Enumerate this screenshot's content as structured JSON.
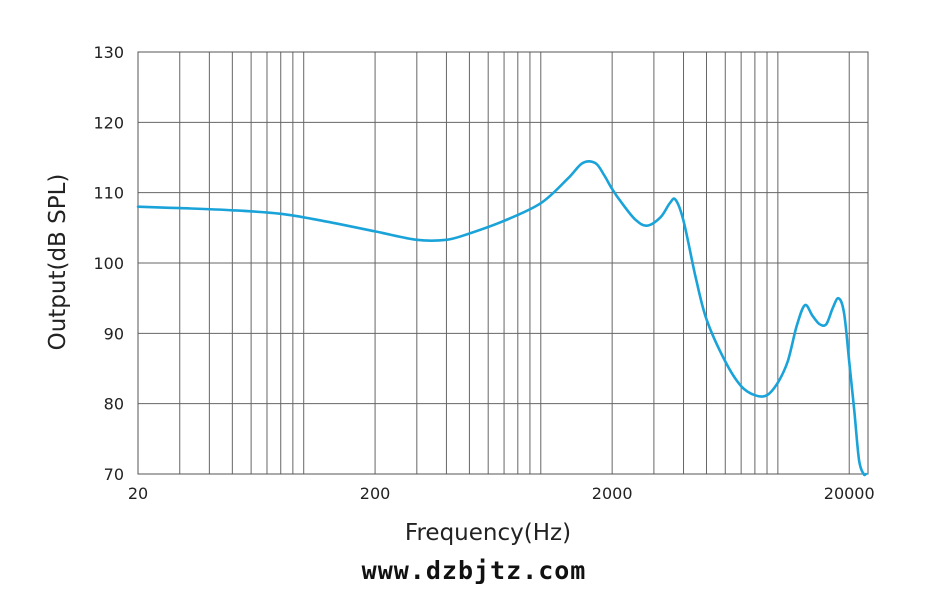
{
  "chart_data": {
    "type": "line",
    "title": "",
    "xlabel": "Frequency(Hz)",
    "ylabel": "Output(dB SPL)",
    "x_scale": "log",
    "xlim": [
      20,
      24000
    ],
    "ylim": [
      70,
      130
    ],
    "x_tick_labels": [
      {
        "value": 20,
        "label": "20"
      },
      {
        "value": 200,
        "label": "200"
      },
      {
        "value": 2000,
        "label": "2000"
      },
      {
        "value": 20000,
        "label": "20000"
      }
    ],
    "y_ticks": [
      70,
      80,
      90,
      100,
      110,
      120,
      130
    ],
    "grid": true,
    "line_color": "#1aa3d9",
    "grid_color": "#666666",
    "series": [
      {
        "x": [
          20,
          30,
          50,
          80,
          120,
          200,
          300,
          400,
          500,
          700,
          1000,
          1300,
          1500,
          1700,
          1850,
          2000,
          2200,
          2500,
          2800,
          3200,
          3500,
          3700,
          4000,
          4500,
          5000,
          6000,
          7000,
          8000,
          9000,
          10000,
          11000,
          12000,
          13000,
          14000,
          15000,
          16000,
          17000,
          18000,
          19000,
          20000,
          21000,
          22000,
          23000,
          23500
        ],
        "y": [
          108,
          107.8,
          107.5,
          107,
          106,
          104.5,
          103.3,
          103.3,
          104.2,
          106,
          108.5,
          112,
          114.2,
          114.2,
          112.5,
          110.5,
          108.5,
          106.2,
          105.3,
          106.5,
          108.5,
          109,
          106,
          98,
          92,
          86,
          82.5,
          81.2,
          81.2,
          83,
          86,
          91,
          94,
          92.5,
          91.3,
          91.3,
          93.5,
          95,
          93,
          86,
          79,
          72,
          70,
          70
        ]
      }
    ]
  },
  "footer": {
    "watermark": "www.dzbjtz.com"
  }
}
